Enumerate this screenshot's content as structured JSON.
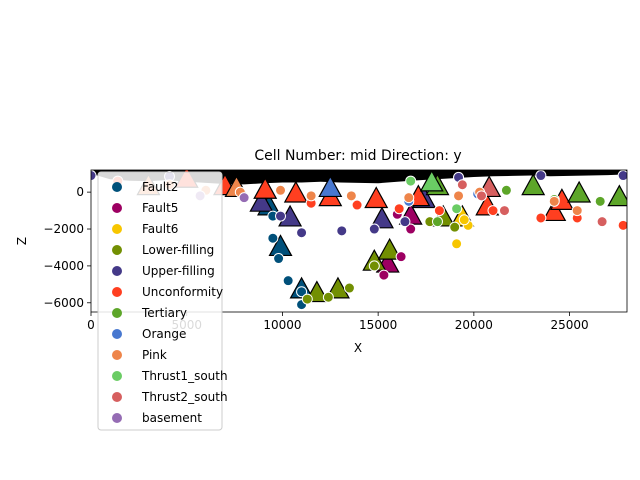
{
  "chart_data": {
    "type": "scatter",
    "title": "Cell Number: mid Direction: y",
    "xlabel": "X",
    "ylabel": "Z",
    "xlim": [
      0,
      28000
    ],
    "ylim": [
      -6500,
      1200
    ],
    "xticks": [
      0,
      5000,
      10000,
      15000,
      20000,
      25000
    ],
    "yticks": [
      0,
      -2000,
      -4000,
      -6000
    ],
    "xtick_labels": [
      "0",
      "5000",
      "10000",
      "15000",
      "20000",
      "25000"
    ],
    "ytick_labels": [
      "0",
      "−2000",
      "−4000",
      "−6000"
    ],
    "grid": false,
    "legend_position": "lower-left",
    "topography": [
      [
        0,
        1000
      ],
      [
        1000,
        700
      ],
      [
        2000,
        620
      ],
      [
        3000,
        600
      ],
      [
        4000,
        650
      ],
      [
        5000,
        560
      ],
      [
        6000,
        500
      ],
      [
        7000,
        440
      ],
      [
        8000,
        420
      ],
      [
        9000,
        480
      ],
      [
        10000,
        520
      ],
      [
        11000,
        520
      ],
      [
        12000,
        560
      ],
      [
        13000,
        520
      ],
      [
        14000,
        500
      ],
      [
        15000,
        480
      ],
      [
        16000,
        560
      ],
      [
        17000,
        640
      ],
      [
        18000,
        700
      ],
      [
        19000,
        760
      ],
      [
        20000,
        820
      ],
      [
        21000,
        860
      ],
      [
        22000,
        880
      ],
      [
        23000,
        900
      ],
      [
        24000,
        860
      ],
      [
        25000,
        880
      ],
      [
        26000,
        900
      ],
      [
        27000,
        920
      ],
      [
        28000,
        960
      ]
    ],
    "series": [
      {
        "name": "Fault2",
        "color": "#00507a",
        "points": [
          [
            9500,
            -1300
          ],
          [
            9500,
            -2500
          ],
          [
            9800,
            -3600
          ],
          [
            10300,
            -4800
          ],
          [
            11000,
            -5400
          ],
          [
            11000,
            -6100
          ]
        ],
        "orientations": [
          [
            9300,
            -800
          ],
          [
            9900,
            -3000
          ],
          [
            11000,
            -5300
          ]
        ]
      },
      {
        "name": "Fault5",
        "color": "#9d0062",
        "points": [
          [
            16700,
            -2000
          ],
          [
            16200,
            -3500
          ],
          [
            15300,
            -4500
          ],
          [
            16000,
            -1200
          ]
        ],
        "orientations": [
          [
            16700,
            -1300
          ],
          [
            15500,
            -3900
          ]
        ]
      },
      {
        "name": "Fault6",
        "color": "#f7c600",
        "points": [
          [
            19100,
            -2800
          ],
          [
            19700,
            -1800
          ],
          [
            19500,
            -1500
          ]
        ],
        "orientations": [
          [
            19400,
            -1400
          ]
        ]
      },
      {
        "name": "Lower-filling",
        "color": "#728f02",
        "points": [
          [
            17700,
            -1600
          ],
          [
            19000,
            -1900
          ],
          [
            11300,
            -5800
          ],
          [
            12400,
            -5700
          ],
          [
            13500,
            -5200
          ],
          [
            14800,
            -4000
          ]
        ],
        "orientations": [
          [
            18400,
            -1400
          ],
          [
            11800,
            -5500
          ],
          [
            12900,
            -5300
          ],
          [
            14800,
            -3800
          ],
          [
            15600,
            -3200
          ]
        ]
      },
      {
        "name": "Upper-filling",
        "color": "#443988",
        "points": [
          [
            0,
            900
          ],
          [
            4100,
            850
          ],
          [
            9900,
            -1300
          ],
          [
            11000,
            -2200
          ],
          [
            13100,
            -2100
          ],
          [
            14800,
            -2000
          ],
          [
            16400,
            -1600
          ],
          [
            19200,
            800
          ],
          [
            23500,
            900
          ],
          [
            27800,
            900
          ]
        ],
        "orientations": [
          [
            8900,
            -600
          ],
          [
            10400,
            -1400
          ],
          [
            15200,
            -1500
          ],
          [
            17400,
            -400
          ]
        ]
      },
      {
        "name": "Unconformity",
        "color": "#ff3f20",
        "points": [
          [
            11500,
            -600
          ],
          [
            13900,
            -700
          ],
          [
            16100,
            -900
          ],
          [
            18200,
            -1000
          ],
          [
            21000,
            -1000
          ],
          [
            23500,
            -1400
          ],
          [
            25400,
            -1400
          ],
          [
            27800,
            -1800
          ],
          [
            1400,
            600
          ]
        ],
        "orientations": [
          [
            9100,
            100
          ],
          [
            10700,
            -100
          ],
          [
            12500,
            -300
          ],
          [
            14900,
            -400
          ],
          [
            17100,
            -300
          ],
          [
            20700,
            -800
          ],
          [
            24200,
            -1100
          ],
          [
            24600,
            -500
          ],
          [
            5000,
            700
          ],
          [
            7000,
            300
          ]
        ]
      },
      {
        "name": "Tertiary",
        "color": "#5da629",
        "points": [
          [
            18100,
            -1600
          ],
          [
            21700,
            100
          ],
          [
            24200,
            -400
          ],
          [
            26600,
            -500
          ]
        ],
        "orientations": [
          [
            23100,
            300
          ],
          [
            25500,
            -100
          ],
          [
            27600,
            -300
          ],
          [
            18100,
            300
          ]
        ]
      },
      {
        "name": "Orange",
        "color": "#4878d0",
        "points": [
          [
            16600,
            -500
          ],
          [
            20200,
            -100
          ]
        ],
        "orientations": [
          [
            12500,
            200
          ]
        ]
      },
      {
        "name": "Pink",
        "color": "#ee854a",
        "points": [
          [
            4100,
            400
          ],
          [
            6000,
            100
          ],
          [
            7800,
            0
          ],
          [
            9900,
            100
          ],
          [
            11500,
            -200
          ],
          [
            13600,
            -200
          ],
          [
            16600,
            -300
          ],
          [
            19200,
            -200
          ],
          [
            20300,
            0
          ],
          [
            24200,
            -500
          ],
          [
            25400,
            -1000
          ]
        ],
        "orientations": [
          [
            3000,
            300
          ],
          [
            7600,
            200
          ]
        ]
      },
      {
        "name": "Thrust1_south",
        "color": "#6acc64",
        "points": [
          [
            16700,
            600
          ],
          [
            19100,
            -900
          ]
        ],
        "orientations": [
          [
            17800,
            500
          ]
        ]
      },
      {
        "name": "Thrust2_south",
        "color": "#d65f5f",
        "points": [
          [
            19400,
            400
          ],
          [
            20400,
            -200
          ],
          [
            21600,
            -1000
          ],
          [
            26700,
            -1600
          ]
        ],
        "orientations": [
          [
            20800,
            200
          ]
        ]
      },
      {
        "name": "basement",
        "color": "#956cb4",
        "points": [
          [
            5700,
            -200
          ],
          [
            8000,
            -300
          ]
        ],
        "orientations": []
      }
    ]
  }
}
